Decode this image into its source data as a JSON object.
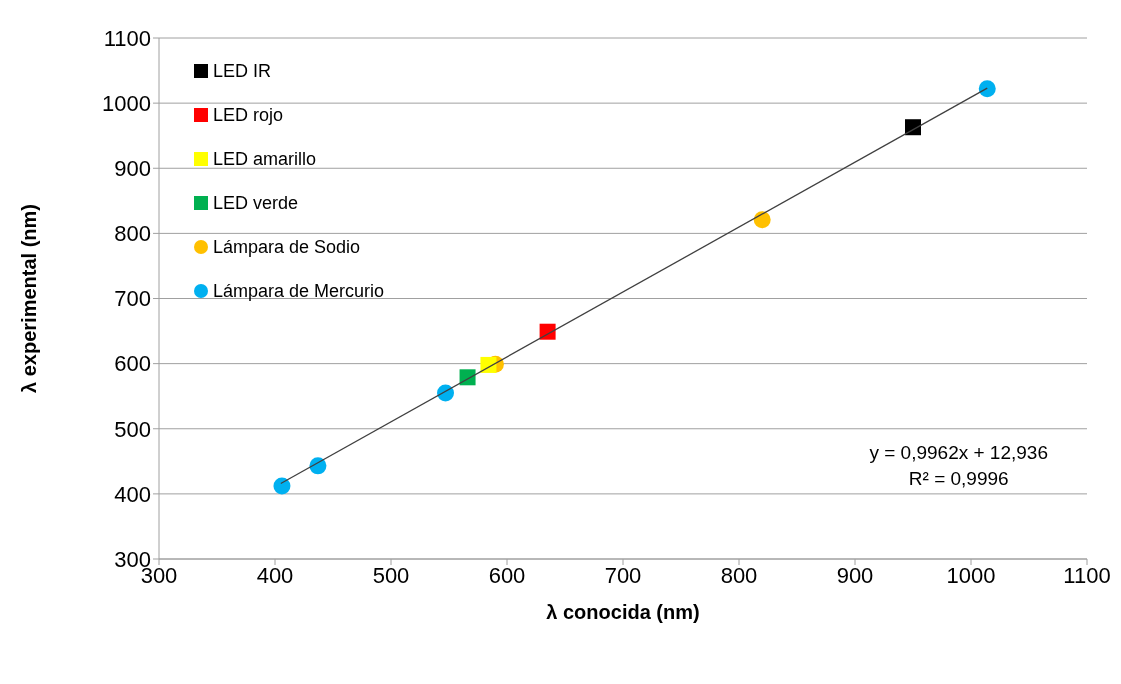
{
  "chart_data": {
    "type": "scatter",
    "xlabel": "λ conocida (nm)",
    "ylabel": "λ experimental (nm)",
    "xlim": [
      300,
      1100
    ],
    "xticks": [
      300,
      400,
      500,
      600,
      700,
      800,
      900,
      1000,
      1100
    ],
    "ylim": [
      300,
      1100
    ],
    "yticks": [
      300,
      400,
      500,
      600,
      700,
      800,
      900,
      1000,
      1100
    ],
    "grid": "y",
    "legend": "top left",
    "series": [
      {
        "name": "LED IR",
        "color": "#000000",
        "marker": "square",
        "x": [
          950
        ],
        "values": [
          963
        ]
      },
      {
        "name": "LED rojo",
        "color": "#ff0000",
        "marker": "square",
        "x": [
          635
        ],
        "values": [
          649
        ]
      },
      {
        "name": "LED amarillo",
        "color": "#ffff00",
        "marker": "square",
        "x": [
          584
        ],
        "values": [
          598
        ]
      },
      {
        "name": "LED verde",
        "color": "#00b050",
        "marker": "square",
        "x": [
          566
        ],
        "values": [
          579
        ]
      },
      {
        "name": "Lámpara de Sodio",
        "color": "#ffc000",
        "marker": "circle",
        "x": [
          590,
          820
        ],
        "values": [
          599,
          821
        ]
      },
      {
        "name": "Lámpara de Mercurio",
        "color": "#00b0f0",
        "marker": "circle",
        "x": [
          406,
          437,
          547,
          1014
        ],
        "values": [
          412,
          443,
          555,
          1022
        ]
      },
      {
        "type": "line",
        "color": "#404040",
        "marker": "none",
        "x": [
          405,
          1014
        ],
        "values": [
          416,
          1023
        ]
      }
    ],
    "annotations": [
      "y = 0,9962x + 12,936",
      "R² = 0,9996"
    ]
  }
}
